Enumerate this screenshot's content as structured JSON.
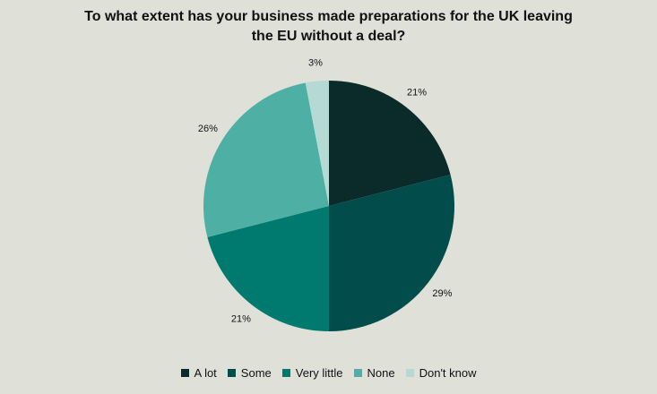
{
  "chart_data": {
    "type": "pie",
    "title": "To what extent has your business made preparations for the UK leaving the EU without  a deal?",
    "categories": [
      "A lot",
      "Some",
      "Very little",
      "None",
      "Don't know"
    ],
    "values": [
      21,
      29,
      21,
      26,
      3
    ],
    "value_labels": [
      "21%",
      "29%",
      "21%",
      "26%",
      "3%"
    ],
    "colors": [
      "#0b2b2b",
      "#024c4c",
      "#007a6e",
      "#4eb0a5",
      "#b5d9d3"
    ],
    "legend": "bottom"
  }
}
